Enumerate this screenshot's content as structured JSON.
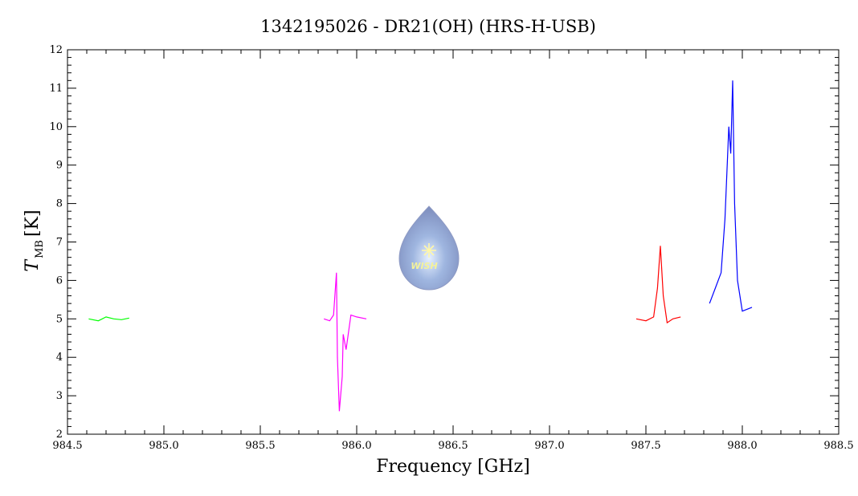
{
  "chart_data": {
    "type": "line",
    "title": "1342195026 - DR21(OH) (HRS-H-USB)",
    "xlabel": "Frequency [GHz]",
    "ylabel_main": "T",
    "ylabel_sub": "MB",
    "ylabel_unit": "[K]",
    "xlim": [
      984.5,
      988.5
    ],
    "ylim": [
      2,
      12
    ],
    "x_ticks": [
      "984.5",
      "985.0",
      "985.5",
      "986.0",
      "986.5",
      "987.0",
      "987.5",
      "988.0",
      "988.5"
    ],
    "y_ticks": [
      "2",
      "3",
      "4",
      "5",
      "6",
      "7",
      "8",
      "9",
      "10",
      "11",
      "12"
    ],
    "grid": false,
    "series": [
      {
        "color": "#00ff00",
        "x": [
          984.61,
          984.66,
          984.7,
          984.74,
          984.78,
          984.82
        ],
        "y": [
          5.0,
          4.95,
          5.05,
          5.0,
          4.98,
          5.02
        ]
      },
      {
        "color": "#ff00ff",
        "x": [
          985.83,
          985.86,
          985.88,
          985.895,
          985.9,
          985.91,
          985.925,
          985.93,
          985.945,
          985.97,
          986.0,
          986.05
        ],
        "y": [
          5.0,
          4.95,
          5.1,
          6.2,
          4.0,
          2.6,
          3.5,
          4.6,
          4.2,
          5.1,
          5.05,
          5.0
        ]
      },
      {
        "color": "#ff0000",
        "x": [
          987.45,
          987.5,
          987.54,
          987.56,
          987.575,
          987.59,
          987.61,
          987.64,
          987.68
        ],
        "y": [
          5.0,
          4.95,
          5.05,
          5.8,
          6.9,
          5.6,
          4.9,
          5.0,
          5.05
        ]
      },
      {
        "color": "#0000ff",
        "x": [
          987.83,
          987.86,
          987.89,
          987.91,
          987.93,
          987.94,
          987.95,
          987.96,
          987.975,
          988.0,
          988.05
        ],
        "y": [
          5.4,
          5.8,
          6.2,
          7.6,
          10.0,
          9.3,
          11.2,
          8.0,
          6.0,
          5.2,
          5.3
        ]
      }
    ]
  },
  "logo": {
    "text": "WISH",
    "icon": "droplet-star-logo"
  }
}
